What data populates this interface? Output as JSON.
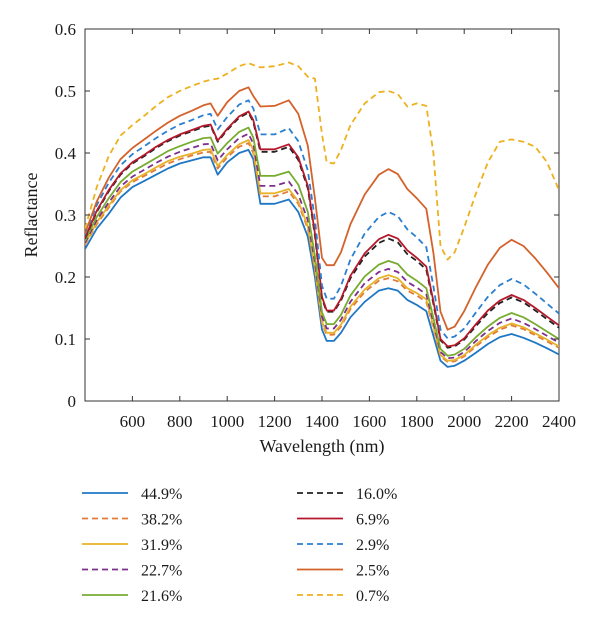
{
  "chart_data": {
    "type": "line",
    "xlabel": "Wavelength (nm)",
    "ylabel": "Reflactance",
    "xlim": [
      400,
      2400
    ],
    "ylim": [
      0,
      0.6
    ],
    "xticks": [
      600,
      800,
      1000,
      1200,
      1400,
      1600,
      1800,
      2000,
      2200,
      2400
    ],
    "yticks": [
      0,
      0.1,
      0.2,
      0.3,
      0.4,
      0.5,
      0.6
    ],
    "grid": false,
    "legend_position": "bottom, two columns",
    "x": [
      400,
      450,
      500,
      550,
      600,
      650,
      700,
      750,
      800,
      850,
      900,
      930,
      960,
      1000,
      1050,
      1090,
      1110,
      1140,
      1200,
      1260,
      1300,
      1340,
      1370,
      1400,
      1420,
      1450,
      1480,
      1520,
      1580,
      1640,
      1680,
      1720,
      1760,
      1800,
      1840,
      1870,
      1900,
      1930,
      1960,
      2000,
      2050,
      2100,
      2150,
      2200,
      2250,
      2300,
      2350,
      2400
    ],
    "series": [
      {
        "name": "44.9%",
        "color": "#1f77c4",
        "dash": "solid",
        "values": [
          0.245,
          0.278,
          0.302,
          0.328,
          0.345,
          0.355,
          0.365,
          0.375,
          0.383,
          0.388,
          0.393,
          0.393,
          0.365,
          0.385,
          0.4,
          0.405,
          0.39,
          0.318,
          0.318,
          0.325,
          0.305,
          0.265,
          0.2,
          0.115,
          0.097,
          0.097,
          0.11,
          0.135,
          0.16,
          0.178,
          0.182,
          0.178,
          0.163,
          0.155,
          0.145,
          0.105,
          0.065,
          0.055,
          0.057,
          0.065,
          0.078,
          0.092,
          0.103,
          0.108,
          0.102,
          0.094,
          0.085,
          0.075
        ]
      },
      {
        "name": "38.2%",
        "color": "#e07b39",
        "dash": "dashed",
        "values": [
          0.252,
          0.285,
          0.312,
          0.338,
          0.353,
          0.363,
          0.373,
          0.383,
          0.39,
          0.396,
          0.401,
          0.402,
          0.375,
          0.393,
          0.41,
          0.416,
          0.4,
          0.33,
          0.33,
          0.338,
          0.318,
          0.278,
          0.212,
          0.125,
          0.107,
          0.107,
          0.12,
          0.148,
          0.176,
          0.194,
          0.198,
          0.193,
          0.178,
          0.17,
          0.16,
          0.118,
          0.072,
          0.063,
          0.064,
          0.072,
          0.088,
          0.103,
          0.115,
          0.122,
          0.116,
          0.106,
          0.096,
          0.086
        ]
      },
      {
        "name": "31.9%",
        "color": "#e8b22a",
        "dash": "solid",
        "values": [
          0.253,
          0.288,
          0.315,
          0.34,
          0.356,
          0.366,
          0.377,
          0.387,
          0.394,
          0.399,
          0.405,
          0.406,
          0.379,
          0.397,
          0.414,
          0.421,
          0.405,
          0.335,
          0.335,
          0.342,
          0.322,
          0.282,
          0.215,
          0.128,
          0.11,
          0.11,
          0.123,
          0.152,
          0.18,
          0.198,
          0.203,
          0.198,
          0.182,
          0.174,
          0.164,
          0.121,
          0.074,
          0.065,
          0.066,
          0.074,
          0.091,
          0.106,
          0.118,
          0.125,
          0.119,
          0.109,
          0.099,
          0.088
        ]
      },
      {
        "name": "22.7%",
        "color": "#7e2f8e",
        "dash": "dashed",
        "values": [
          0.255,
          0.292,
          0.32,
          0.346,
          0.362,
          0.373,
          0.384,
          0.394,
          0.402,
          0.408,
          0.414,
          0.415,
          0.388,
          0.406,
          0.424,
          0.431,
          0.415,
          0.347,
          0.347,
          0.354,
          0.333,
          0.292,
          0.224,
          0.136,
          0.117,
          0.117,
          0.131,
          0.16,
          0.19,
          0.208,
          0.213,
          0.208,
          0.192,
          0.183,
          0.172,
          0.127,
          0.079,
          0.069,
          0.07,
          0.079,
          0.097,
          0.113,
          0.126,
          0.133,
          0.126,
          0.116,
          0.105,
          0.094
        ]
      },
      {
        "name": "21.6%",
        "color": "#77ac30",
        "dash": "solid",
        "values": [
          0.258,
          0.297,
          0.327,
          0.353,
          0.37,
          0.381,
          0.392,
          0.403,
          0.411,
          0.418,
          0.424,
          0.425,
          0.399,
          0.416,
          0.434,
          0.441,
          0.425,
          0.363,
          0.363,
          0.37,
          0.349,
          0.305,
          0.234,
          0.143,
          0.124,
          0.124,
          0.139,
          0.17,
          0.201,
          0.22,
          0.226,
          0.221,
          0.204,
          0.194,
          0.182,
          0.134,
          0.084,
          0.073,
          0.075,
          0.084,
          0.103,
          0.12,
          0.134,
          0.142,
          0.135,
          0.124,
          0.112,
          0.1
        ]
      },
      {
        "name": "16.0%",
        "color": "#222222",
        "dash": "dashed",
        "values": [
          0.262,
          0.305,
          0.338,
          0.365,
          0.383,
          0.395,
          0.408,
          0.419,
          0.428,
          0.435,
          0.442,
          0.444,
          0.418,
          0.437,
          0.457,
          0.465,
          0.45,
          0.402,
          0.402,
          0.41,
          0.389,
          0.343,
          0.267,
          0.165,
          0.144,
          0.144,
          0.162,
          0.198,
          0.233,
          0.255,
          0.262,
          0.256,
          0.237,
          0.226,
          0.212,
          0.157,
          0.098,
          0.086,
          0.088,
          0.099,
          0.121,
          0.142,
          0.158,
          0.167,
          0.159,
          0.146,
          0.132,
          0.118
        ]
      },
      {
        "name": "6.9%",
        "color": "#b5182a",
        "dash": "solid",
        "values": [
          0.263,
          0.307,
          0.34,
          0.367,
          0.385,
          0.397,
          0.41,
          0.421,
          0.43,
          0.437,
          0.444,
          0.446,
          0.42,
          0.439,
          0.459,
          0.467,
          0.453,
          0.406,
          0.406,
          0.414,
          0.393,
          0.347,
          0.271,
          0.168,
          0.146,
          0.146,
          0.165,
          0.202,
          0.238,
          0.261,
          0.268,
          0.262,
          0.243,
          0.231,
          0.217,
          0.161,
          0.1,
          0.088,
          0.09,
          0.101,
          0.124,
          0.146,
          0.162,
          0.171,
          0.163,
          0.15,
          0.136,
          0.122
        ]
      },
      {
        "name": "2.9%",
        "color": "#2b7fd0",
        "dash": "dashed",
        "values": [
          0.268,
          0.316,
          0.352,
          0.38,
          0.398,
          0.411,
          0.424,
          0.436,
          0.446,
          0.453,
          0.461,
          0.463,
          0.438,
          0.458,
          0.478,
          0.485,
          0.472,
          0.43,
          0.43,
          0.44,
          0.419,
          0.372,
          0.293,
          0.186,
          0.165,
          0.165,
          0.186,
          0.228,
          0.27,
          0.297,
          0.305,
          0.298,
          0.277,
          0.264,
          0.248,
          0.185,
          0.115,
          0.101,
          0.104,
          0.117,
          0.143,
          0.168,
          0.187,
          0.197,
          0.188,
          0.173,
          0.157,
          0.141
        ]
      },
      {
        "name": "2.5%",
        "color": "#d4622a",
        "dash": "solid",
        "values": [
          0.27,
          0.322,
          0.36,
          0.39,
          0.408,
          0.422,
          0.436,
          0.449,
          0.46,
          0.468,
          0.477,
          0.48,
          0.46,
          0.482,
          0.5,
          0.506,
          0.492,
          0.475,
          0.476,
          0.485,
          0.463,
          0.412,
          0.327,
          0.231,
          0.219,
          0.219,
          0.24,
          0.285,
          0.333,
          0.365,
          0.374,
          0.366,
          0.342,
          0.327,
          0.31,
          0.239,
          0.144,
          0.115,
          0.12,
          0.145,
          0.184,
          0.22,
          0.247,
          0.26,
          0.25,
          0.23,
          0.207,
          0.182
        ]
      },
      {
        "name": "0.7%",
        "color": "#edb120",
        "dash": "dashed",
        "values": [
          0.278,
          0.345,
          0.395,
          0.428,
          0.445,
          0.46,
          0.476,
          0.49,
          0.5,
          0.508,
          0.515,
          0.518,
          0.52,
          0.528,
          0.54,
          0.545,
          0.542,
          0.538,
          0.54,
          0.546,
          0.54,
          0.523,
          0.52,
          0.43,
          0.385,
          0.383,
          0.405,
          0.445,
          0.48,
          0.498,
          0.5,
          0.495,
          0.475,
          0.48,
          0.476,
          0.4,
          0.25,
          0.228,
          0.24,
          0.28,
          0.335,
          0.385,
          0.418,
          0.422,
          0.418,
          0.41,
          0.385,
          0.34
        ]
      }
    ]
  }
}
